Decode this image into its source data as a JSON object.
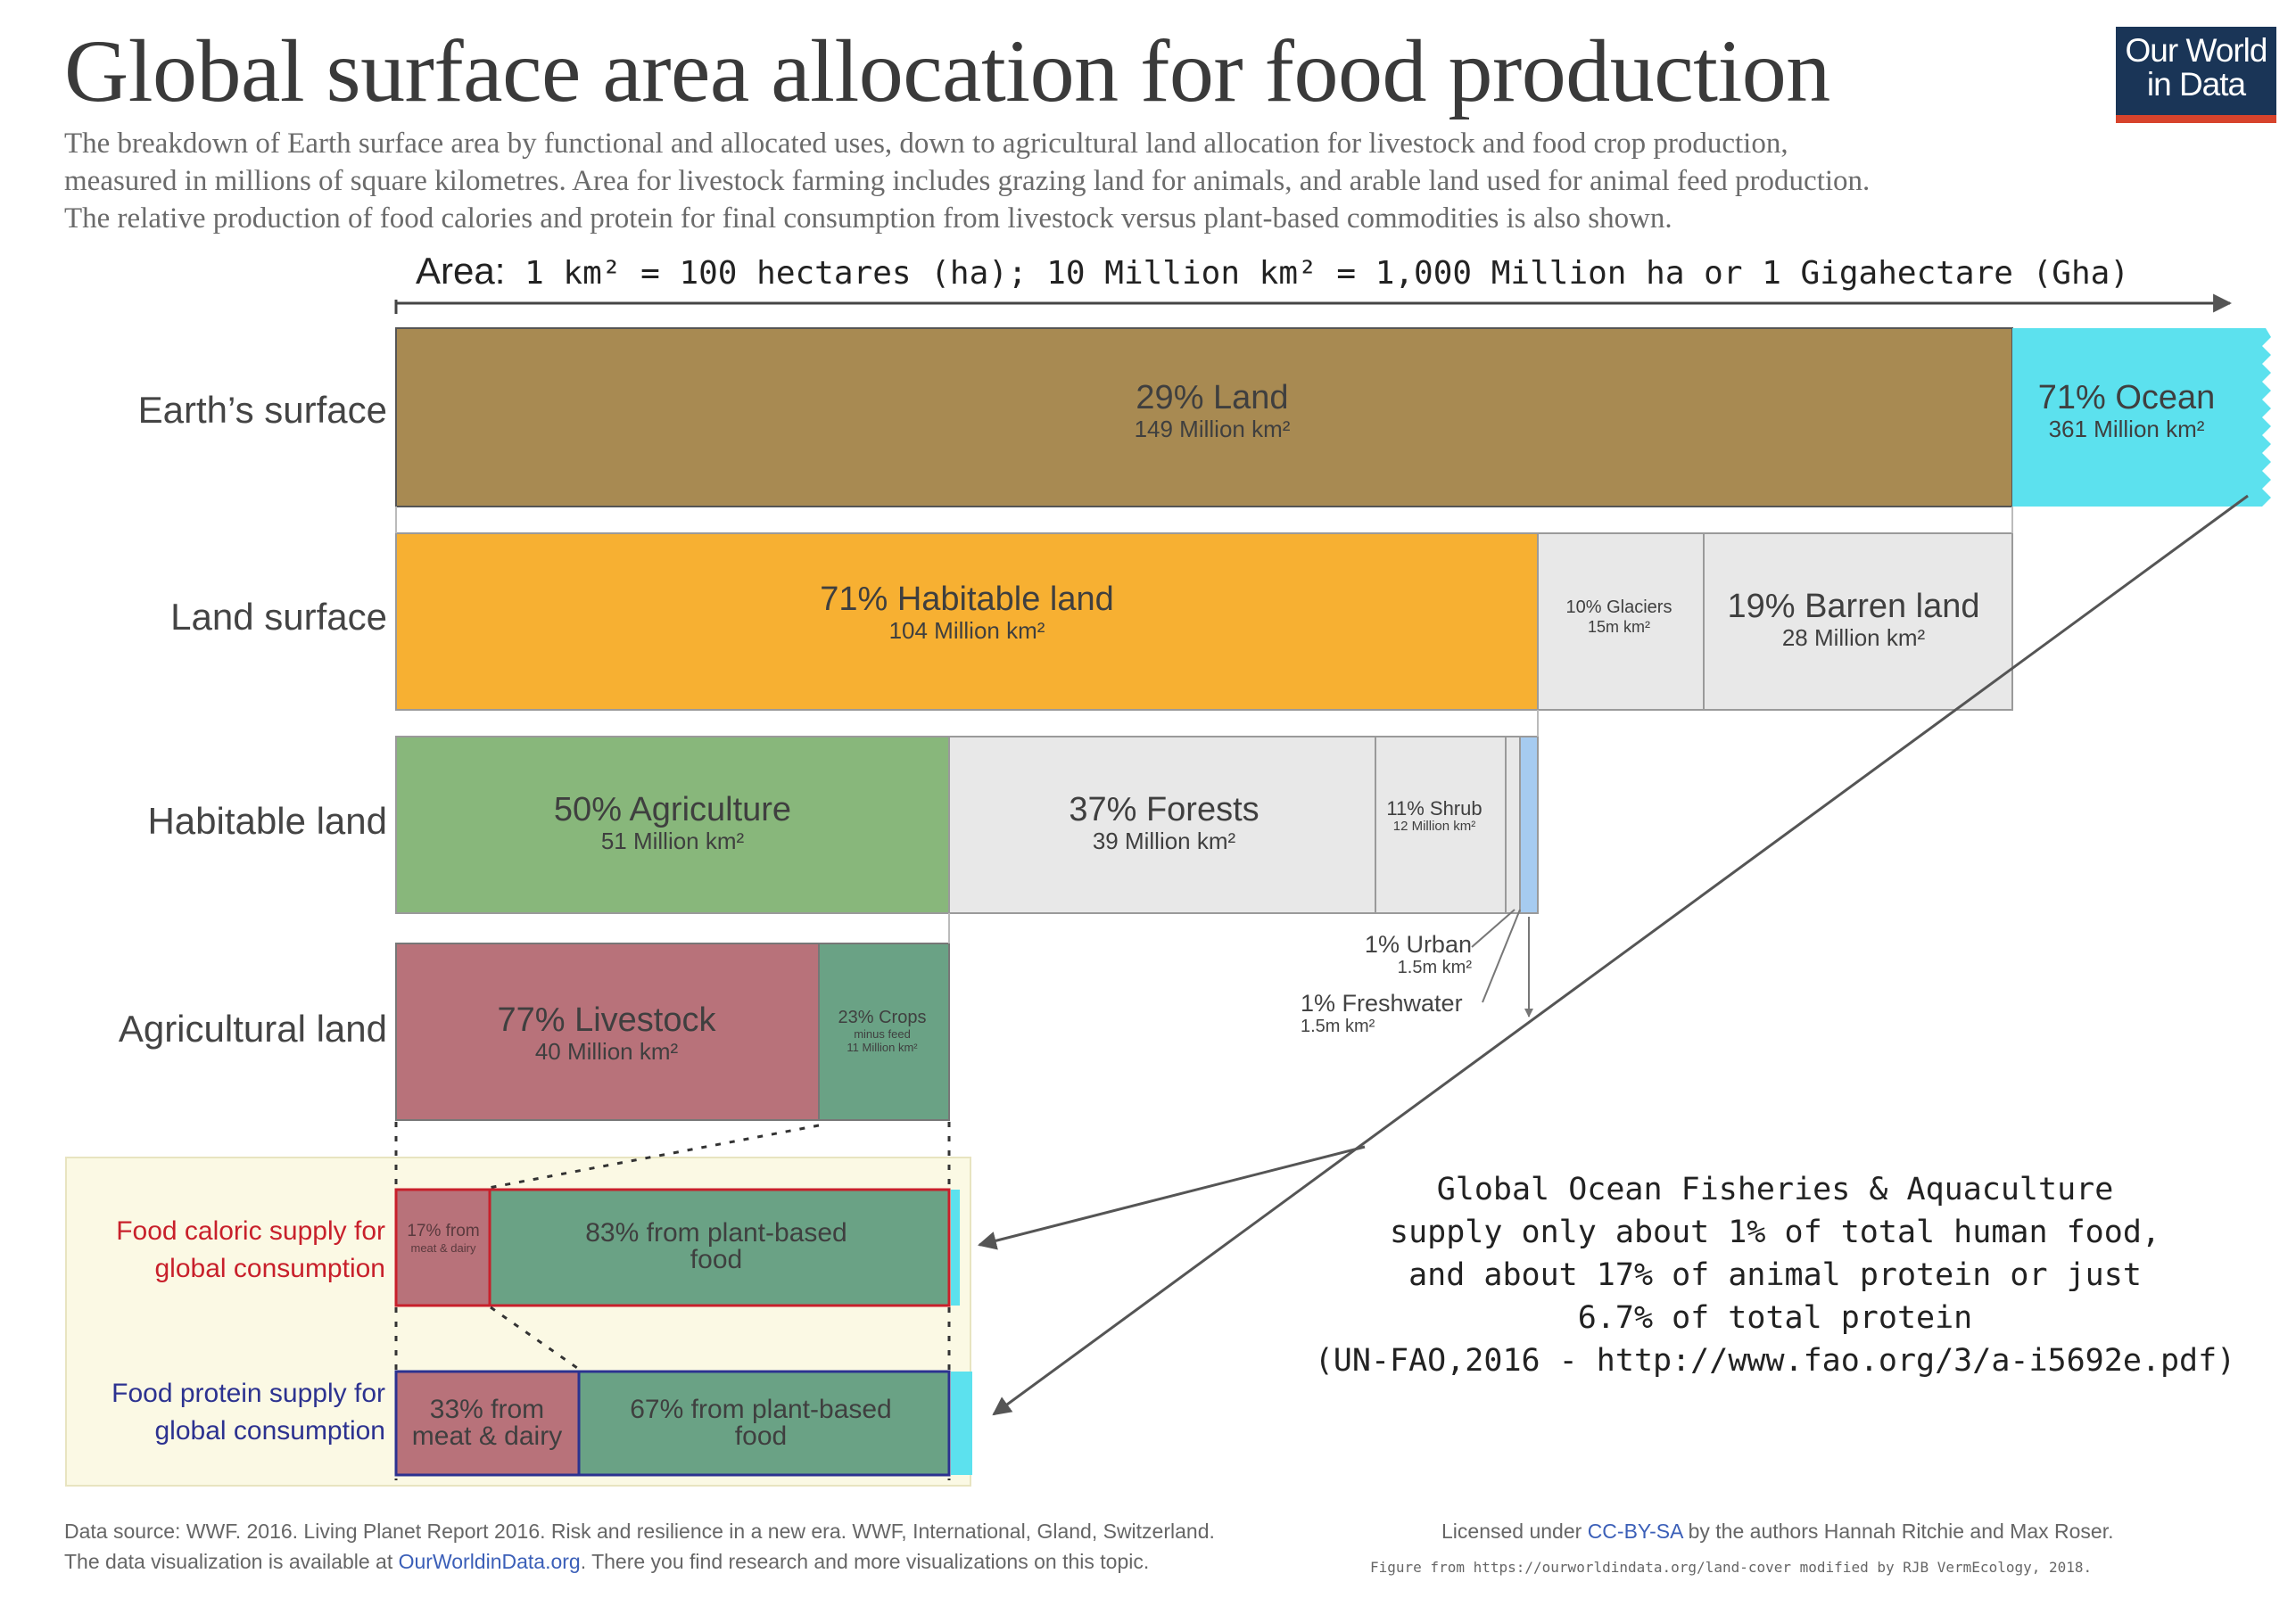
{
  "header": {
    "title": "Global surface area allocation for food production",
    "subtitle_lines": [
      "The breakdown of Earth surface area by functional and allocated uses, down to agricultural land allocation for livestock and food crop production,",
      "measured in millions of square kilometres. Area for livestock farming includes grazing land for animals, and arable land used for animal feed production.",
      "The relative production of food calories and protein for final consumption from livestock versus plant-based commodities is also shown."
    ],
    "logo_line1": "Our World",
    "logo_line2": "in Data",
    "logo_colors": {
      "background": "#1a3557",
      "accent": "#d7432c"
    }
  },
  "axis": {
    "label_lead": "Area:",
    "label_rest": " 1 km² = 100 hectares (ha); 10 Million km² = 1,000 Million ha or 1 Gigahectare (Gha)"
  },
  "chart_data": {
    "type": "bar",
    "orientation": "horizontal stacked (nested)",
    "units": "Million km²",
    "rows": [
      {
        "name": "Earth’s surface",
        "segments": [
          {
            "label": "29% Land",
            "sub": "149 Million km²",
            "pct": 29,
            "value": 149,
            "color": "#a88a52"
          },
          {
            "label": "71% Ocean",
            "sub": "361 Million km²",
            "pct": 71,
            "value": 361,
            "color": "#5ce1ee"
          }
        ]
      },
      {
        "name": "Land surface",
        "segments": [
          {
            "label": "71% Habitable land",
            "sub": "104 Million km²",
            "pct": 71,
            "value": 104,
            "color": "#f7b032"
          },
          {
            "label": "10% Glaciers",
            "sub": "15m km²",
            "pct": 10,
            "value": 15,
            "color": "#e8e8e8"
          },
          {
            "label": "19% Barren land",
            "sub": "28 Million km²",
            "pct": 19,
            "value": 28,
            "color": "#e8e8e8"
          }
        ]
      },
      {
        "name": "Habitable land",
        "segments": [
          {
            "label": "50% Agriculture",
            "sub": "51 Million km²",
            "pct": 50,
            "value": 51,
            "color": "#88b77b"
          },
          {
            "label": "37% Forests",
            "sub": "39 Million km²",
            "pct": 37,
            "value": 39,
            "color": "#e8e8e8"
          },
          {
            "label": "11% Shrub",
            "sub": "12 Million km²",
            "pct": 11,
            "value": 12,
            "color": "#e8e8e8"
          },
          {
            "label": "1% Urban",
            "sub": "1.5m km²",
            "pct": 1,
            "value": 1.5,
            "color": "#e8e8e8"
          },
          {
            "label": "1% Freshwater",
            "sub": "1.5m km²",
            "pct": 1,
            "value": 1.5,
            "color": "#a6cbf0"
          }
        ]
      },
      {
        "name": "Agricultural land",
        "segments": [
          {
            "label": "77% Livestock",
            "sub": "40 Million km²",
            "pct": 77,
            "value": 40,
            "color": "#b8727a"
          },
          {
            "label": "23% Crops",
            "sub_lines": [
              "minus feed",
              "11 Million km²"
            ],
            "pct": 23,
            "value": 11,
            "color": "#6aa285"
          }
        ]
      }
    ],
    "supply": [
      {
        "name_lines": [
          "Food caloric supply for",
          "global consumption"
        ],
        "name_color": "#c8202b",
        "border_color": "#c8202b",
        "segments": [
          {
            "label_lines": [
              "17% from",
              "meat & dairy"
            ],
            "pct": 17,
            "color": "#b8727a"
          },
          {
            "label_lines": [
              "83% from plant-based",
              "food"
            ],
            "pct": 83,
            "color": "#6aa285"
          }
        ]
      },
      {
        "name_lines": [
          "Food protein supply for",
          "global consumption"
        ],
        "name_color": "#2c3290",
        "border_color": "#2c3290",
        "segments": [
          {
            "label_lines": [
              "33% from",
              "meat & dairy"
            ],
            "pct": 33,
            "color": "#b8727a"
          },
          {
            "label_lines": [
              "67% from plant-based",
              "food"
            ],
            "pct": 67,
            "color": "#6aa285"
          }
        ]
      }
    ],
    "ocean_color": "#5ce1ee",
    "supply_panel_color": "#fbf9e4"
  },
  "annotations": {
    "urban_label": "1% Urban",
    "urban_sub": "1.5m km²",
    "freshwater_label": "1% Freshwater",
    "freshwater_sub": "1.5m km²",
    "fisheries_lines": [
      "Global Ocean Fisheries & Aquaculture",
      "supply only about 1% of total human food,",
      "and about 17% of animal protein or just",
      "6.7% of total protein",
      "(UN-FAO,2016 - http://www.fao.org/3/a-i5692e.pdf)"
    ]
  },
  "footer": {
    "source_line": "Data source: WWF. 2016. Living Planet Report 2016. Risk and resilience in a new era. WWF, International, Gland, Switzerland.",
    "viz_prefix": "The data visualization is available at ",
    "viz_link": "OurWorldinData.org",
    "viz_suffix": ". There you find research and more visualizations on this topic.",
    "license_prefix": "Licensed under ",
    "license_link": "CC-BY-SA",
    "license_suffix": " by the authors Hannah Ritchie and Max Roser.",
    "modified_note": "Figure from https://ourworldindata.org/land-cover modified by RJB VermEcology, 2018."
  }
}
